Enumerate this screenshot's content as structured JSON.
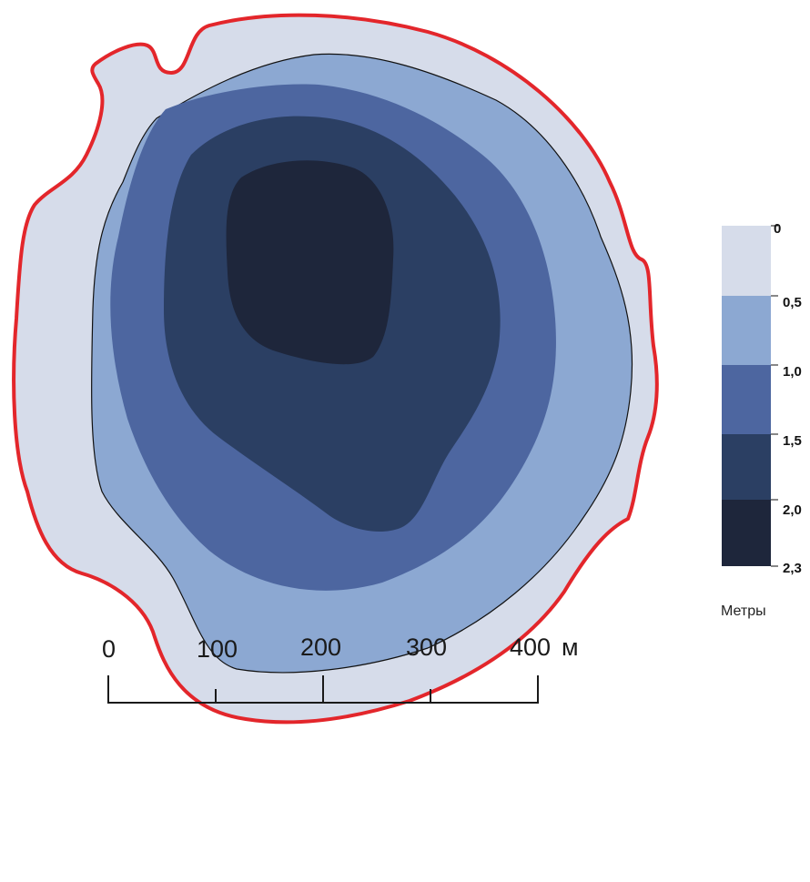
{
  "legend": {
    "unit": "Метры",
    "breaks": [
      "0",
      "0,5",
      "1,0",
      "1,5",
      "2,0",
      "2,3"
    ],
    "classes": [
      {
        "from": 0,
        "to": 0.5,
        "color": "#d6dcea"
      },
      {
        "from": 0.5,
        "to": 1.0,
        "color": "#8ca8d2"
      },
      {
        "from": 1.0,
        "to": 1.5,
        "color": "#4d66a0"
      },
      {
        "from": 1.5,
        "to": 2.0,
        "color": "#2b3f63"
      },
      {
        "from": 2.0,
        "to": 2.3,
        "color": "#1e263b"
      }
    ]
  },
  "shoreline_color": "#e3262b",
  "scale_bar": {
    "ticks": [
      "0",
      "100",
      "200",
      "300",
      "400"
    ],
    "unit": "м"
  }
}
